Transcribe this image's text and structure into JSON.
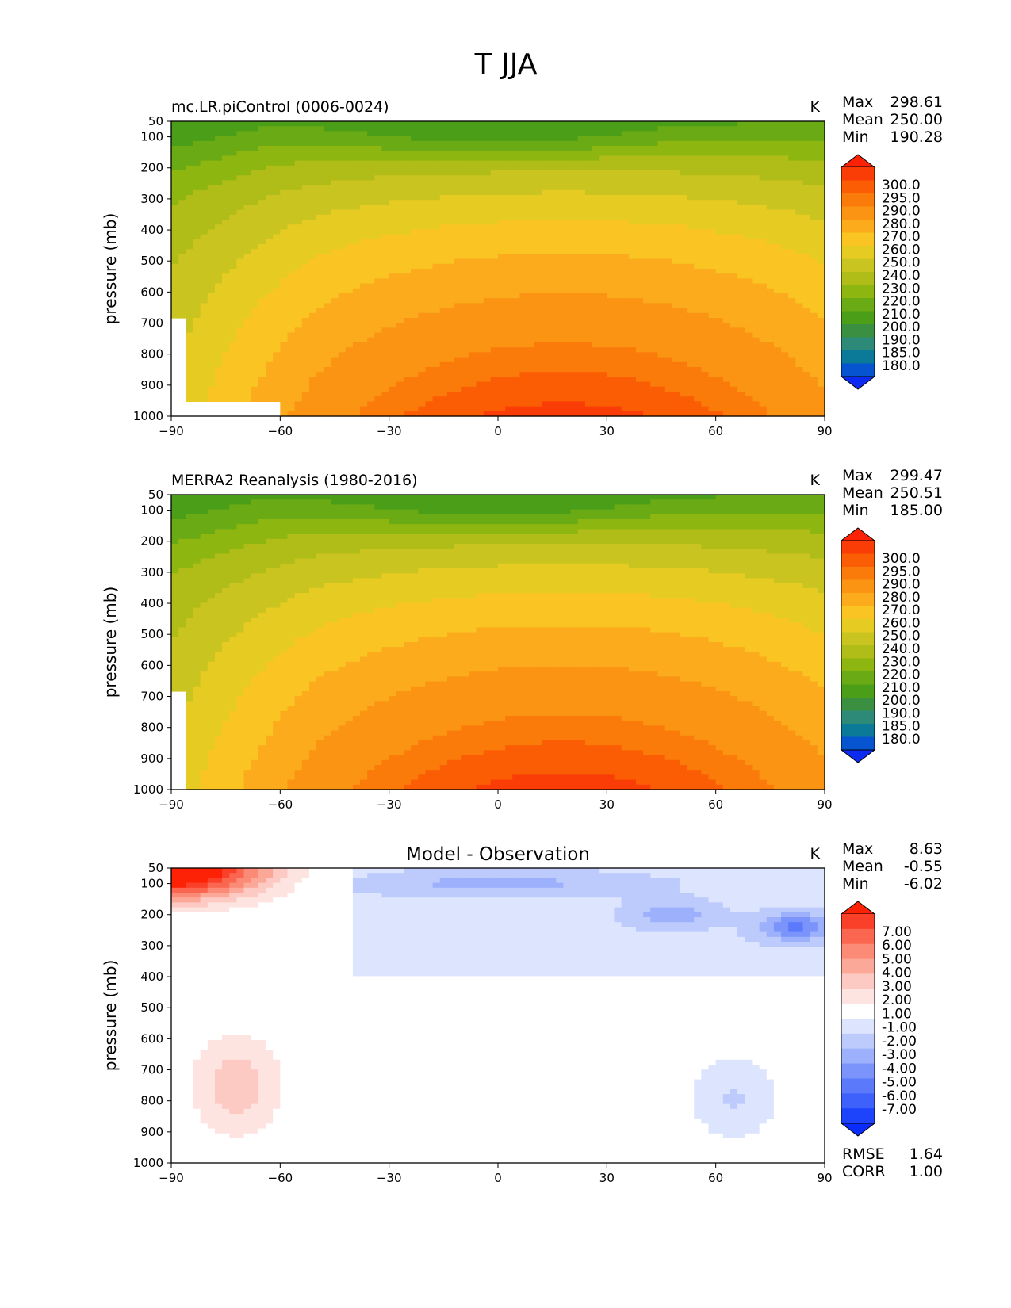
{
  "figure_title": "T JJA",
  "y_label": "pressure (mb)",
  "unit": "K",
  "stat_labels": {
    "max": "Max",
    "mean": "Mean",
    "min": "Min"
  },
  "diff_stat_labels": {
    "rmse": "RMSE",
    "corr": "CORR"
  },
  "colors": {
    "abs_levels": [
      "#0d2bf0",
      "#0654d0",
      "#0a7a98",
      "#2e8a78",
      "#3a9040",
      "#4a9e18",
      "#6aaa14",
      "#8eb610",
      "#b0bc18",
      "#cac420",
      "#e6cc22",
      "#fac522",
      "#fbab1c",
      "#fb9412",
      "#fa7a0a",
      "#fb5d04",
      "#fa3c06",
      "#fd2206"
    ],
    "abs_fill_region": [
      "#1f8a7a",
      "#3d9a40",
      "#52a81a",
      "#78b012",
      "#a8bc16",
      "#c8c21e",
      "#e6ce22",
      "#fbc622",
      "#fbb01c",
      "#fb960f",
      "#fa7c08",
      "#fb6004"
    ],
    "diff_levels": [
      "#0a2cfb",
      "#1e44fb",
      "#3e60fb",
      "#5a7afb",
      "#7a94fb",
      "#9cb0fc",
      "#bccafc",
      "#dce4fe",
      "#ffffff",
      "#fee4e0",
      "#fccac2",
      "#fca898",
      "#fb8a76",
      "#fb6650",
      "#fa4028",
      "#fd2206"
    ]
  },
  "chart_data": [
    {
      "type": "contour",
      "title": "mc.LR.piControl (0006-0024)",
      "unit": "K",
      "xlabel": "",
      "ylabel": "pressure (mb)",
      "x_ticks": [
        -90,
        -60,
        -30,
        0,
        30,
        60,
        90
      ],
      "x_tick_labels": [
        "−90",
        "−60",
        "−30",
        "0",
        "30",
        "60",
        "90"
      ],
      "y_ticks": [
        50,
        100,
        200,
        300,
        400,
        500,
        600,
        700,
        800,
        900,
        1000
      ],
      "xlim": [
        -90,
        90
      ],
      "ylim": [
        1000,
        50
      ],
      "stats": {
        "max": "298.61",
        "mean": "250.00",
        "min": "190.28"
      },
      "colorbar_levels": [
        "300.0",
        "295.0",
        "290.0",
        "280.0",
        "270.0",
        "260.0",
        "250.0",
        "240.0",
        "230.0",
        "220.0",
        "210.0",
        "200.0",
        "190.0",
        "185.0",
        "180.0"
      ]
    },
    {
      "type": "contour",
      "title": "MERRA2 Reanalysis (1980-2016)",
      "unit": "K",
      "xlabel": "",
      "ylabel": "pressure (mb)",
      "x_ticks": [
        -90,
        -60,
        -30,
        0,
        30,
        60,
        90
      ],
      "x_tick_labels": [
        "−90",
        "−60",
        "−30",
        "0",
        "30",
        "60",
        "90"
      ],
      "y_ticks": [
        50,
        100,
        200,
        300,
        400,
        500,
        600,
        700,
        800,
        900,
        1000
      ],
      "xlim": [
        -90,
        90
      ],
      "ylim": [
        1000,
        50
      ],
      "stats": {
        "max": "299.47",
        "mean": "250.51",
        "min": "185.00"
      },
      "colorbar_levels": [
        "300.0",
        "295.0",
        "290.0",
        "280.0",
        "270.0",
        "260.0",
        "250.0",
        "240.0",
        "230.0",
        "220.0",
        "210.0",
        "200.0",
        "190.0",
        "185.0",
        "180.0"
      ]
    },
    {
      "type": "contour",
      "title": "Model - Observation",
      "unit": "K",
      "xlabel": "",
      "ylabel": "pressure (mb)",
      "x_ticks": [
        -90,
        -60,
        -30,
        0,
        30,
        60,
        90
      ],
      "x_tick_labels": [
        "−90",
        "−60",
        "−30",
        "0",
        "30",
        "60",
        "90"
      ],
      "y_ticks": [
        50,
        100,
        200,
        300,
        400,
        500,
        600,
        700,
        800,
        900,
        1000
      ],
      "xlim": [
        -90,
        90
      ],
      "ylim": [
        1000,
        50
      ],
      "stats": {
        "max": "8.63",
        "mean": "-0.55",
        "min": "-6.02"
      },
      "rmse": "1.64",
      "corr": "1.00",
      "colorbar_levels": [
        "7.00",
        "6.00",
        "5.00",
        "4.00",
        "3.00",
        "2.00",
        "1.00",
        "-1.00",
        "-2.00",
        "-3.00",
        "-4.00",
        "-5.00",
        "-6.00",
        "-7.00"
      ]
    }
  ]
}
